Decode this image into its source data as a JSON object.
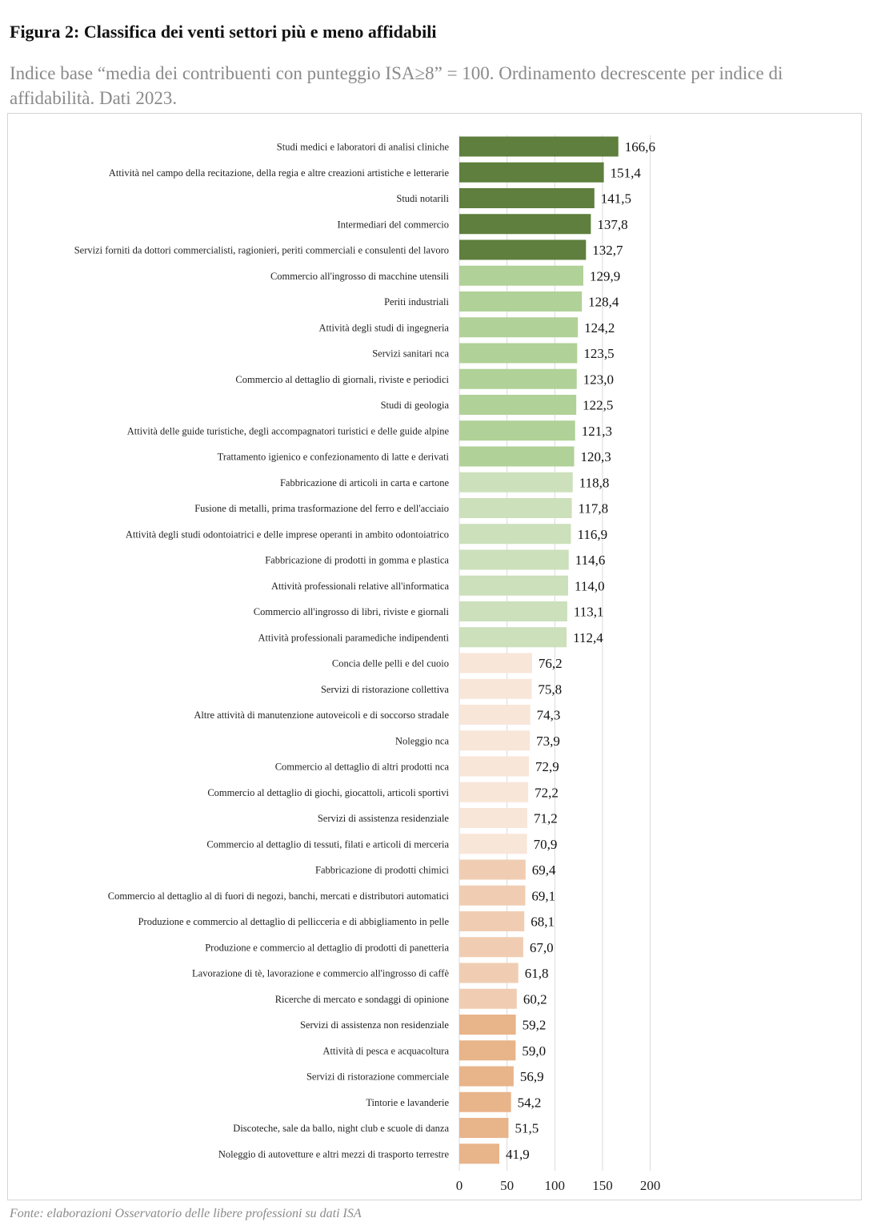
{
  "figure": {
    "title": "Figura 2: Classifica dei venti settori più e meno affidabili",
    "subtitle": "Indice base “media dei contribuenti con punteggio ISA≥8” = 100. Ordinamento decrescente per indice di affidabilità. Dati 2023.",
    "source": "Fonte: elaborazioni Osservatorio delle libere professioni su dati ISA"
  },
  "chart_data": {
    "type": "bar",
    "orientation": "horizontal",
    "title": "",
    "xlabel": "",
    "ylabel": "",
    "xlim": [
      0,
      200
    ],
    "xticks": [
      0,
      50,
      100,
      150,
      200
    ],
    "grid": "vertical",
    "legend": "none",
    "decimal_separator": ",",
    "categories": [
      "Studi medici e laboratori di analisi cliniche",
      "Attività nel campo della recitazione, della regia e altre creazioni artistiche e letterarie",
      "Studi notarili",
      "Intermediari del commercio",
      "Servizi forniti da dottori commercialisti, ragionieri, periti commerciali e consulenti del lavoro",
      "Commercio all'ingrosso di macchine utensili",
      "Periti industriali",
      "Attività degli studi di ingegneria",
      "Servizi sanitari nca",
      "Commercio al dettaglio di giornali, riviste e periodici",
      "Studi di geologia",
      "Attività delle guide turistiche, degli accompagnatori turistici e delle guide alpine",
      "Trattamento igienico e confezionamento di latte e derivati",
      "Fabbricazione di articoli in carta e cartone",
      "Fusione di metalli, prima trasformazione del ferro e dell'acciaio",
      "Attività degli studi odontoiatrici e delle imprese operanti in ambito odontoiatrico",
      "Fabbricazione di prodotti in gomma e plastica",
      "Attività professionali relative all'informatica",
      "Commercio all'ingrosso di libri, riviste e giornali",
      "Attività professionali paramediche indipendenti",
      "Concia delle pelli e del cuoio",
      "Servizi di ristorazione collettiva",
      "Altre attività di manutenzione autoveicoli e di soccorso stradale",
      "Noleggio nca",
      "Commercio al dettaglio di altri prodotti nca",
      "Commercio al dettaglio di giochi, giocattoli, articoli sportivi",
      "Servizi di assistenza residenziale",
      "Commercio al dettaglio di tessuti, filati e articoli di merceria",
      "Fabbricazione di prodotti chimici",
      "Commercio al dettaglio al di fuori di negozi, banchi, mercati e distributori automatici",
      "Produzione e commercio al dettaglio di pellicceria e di abbigliamento in pelle",
      "Produzione e commercio al dettaglio di prodotti di panetteria",
      "Lavorazione di tè, lavorazione e commercio all'ingrosso di caffè",
      "Ricerche di mercato e sondaggi di opinione",
      "Servizi di assistenza non residenziale",
      "Attività di pesca e acquacoltura",
      "Servizi di ristorazione commerciale",
      "Tintorie e lavanderie",
      "Discoteche, sale da ballo, night club e scuole di danza",
      "Noleggio di autovetture e altri mezzi di trasporto terrestre"
    ],
    "values": [
      166.6,
      151.4,
      141.5,
      137.8,
      132.7,
      129.9,
      128.4,
      124.2,
      123.5,
      123.0,
      122.5,
      121.3,
      120.3,
      118.8,
      117.8,
      116.9,
      114.6,
      114.0,
      113.1,
      112.4,
      76.2,
      75.8,
      74.3,
      73.9,
      72.9,
      72.2,
      71.2,
      70.9,
      69.4,
      69.1,
      68.1,
      67.0,
      61.8,
      60.2,
      59.2,
      59.0,
      56.9,
      54.2,
      51.5,
      41.9
    ],
    "value_labels": [
      "166,6",
      "151,4",
      "141,5",
      "137,8",
      "132,7",
      "129,9",
      "128,4",
      "124,2",
      "123,5",
      "123,0",
      "122,5",
      "121,3",
      "120,3",
      "118,8",
      "117,8",
      "116,9",
      "114,6",
      "114,0",
      "113,1",
      "112,4",
      "76,2",
      "75,8",
      "74,3",
      "73,9",
      "72,9",
      "72,2",
      "71,2",
      "70,9",
      "69,4",
      "69,1",
      "68,1",
      "67,0",
      "61,8",
      "60,2",
      "59,2",
      "59,0",
      "56,9",
      "54,2",
      "51,5",
      "41,9"
    ],
    "colors": [
      "#5e7f3d",
      "#5e7f3d",
      "#5e7f3d",
      "#5e7f3d",
      "#5e7f3d",
      "#b0d197",
      "#b0d197",
      "#b0d197",
      "#b0d197",
      "#b0d197",
      "#b0d197",
      "#b0d197",
      "#b0d197",
      "#cce0bb",
      "#cce0bb",
      "#cce0bb",
      "#cce0bb",
      "#cce0bb",
      "#cce0bb",
      "#cce0bb",
      "#f8e6d8",
      "#f8e6d8",
      "#f8e6d8",
      "#f8e6d8",
      "#f8e6d8",
      "#f8e6d8",
      "#f8e6d8",
      "#f8e6d8",
      "#f0cdb2",
      "#f0cdb2",
      "#f0cdb2",
      "#f0cdb2",
      "#f0cdb2",
      "#f0cdb2",
      "#e8b48a",
      "#e8b48a",
      "#e8b48a",
      "#e8b48a",
      "#e8b48a",
      "#e8b48a"
    ]
  }
}
